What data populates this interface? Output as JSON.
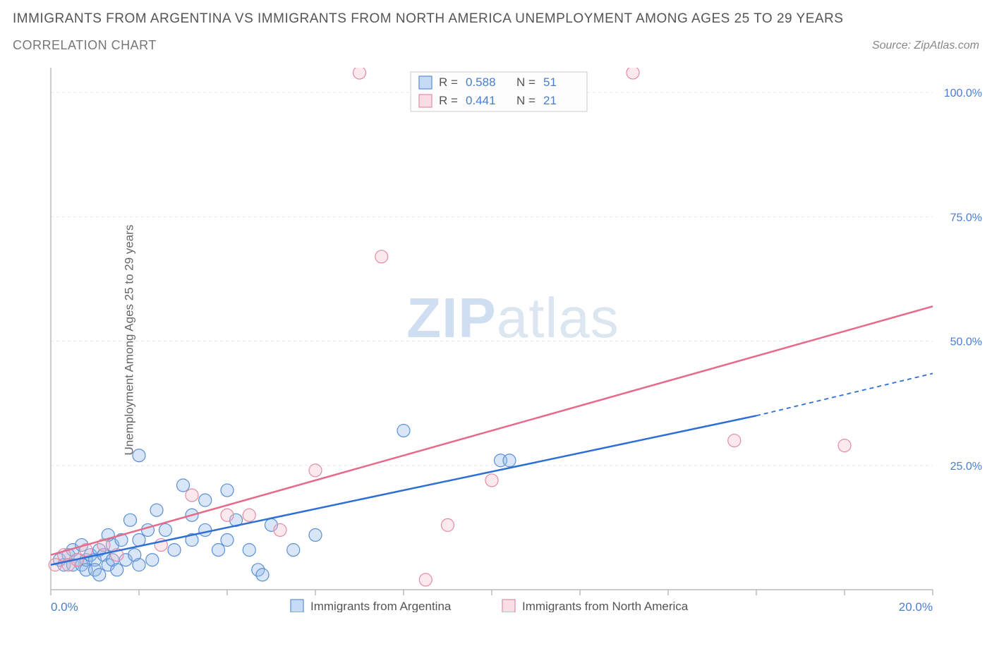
{
  "title": "IMMIGRANTS FROM ARGENTINA VS IMMIGRANTS FROM NORTH AMERICA UNEMPLOYMENT AMONG AGES 25 TO 29 YEARS",
  "subtitle": "CORRELATION CHART",
  "source": "Source: ZipAtlas.com",
  "y_axis_label": "Unemployment Among Ages 25 to 29 years",
  "watermark_a": "ZIP",
  "watermark_b": "atlas",
  "chart": {
    "type": "scatter",
    "background_color": "#ffffff",
    "grid_color": "#e8e8e8",
    "axis_color": "#bbbbbb",
    "tick_label_color": "#4a7dd0",
    "xlim": [
      0,
      20
    ],
    "ylim": [
      0,
      105
    ],
    "x_ticks": [
      0,
      2,
      4,
      6,
      8,
      10,
      12,
      14,
      16,
      18,
      20
    ],
    "x_tick_labels": {
      "0": "0.0%",
      "20": "20.0%"
    },
    "y_ticks": [
      25,
      50,
      75,
      100
    ],
    "y_tick_labels": {
      "25": "25.0%",
      "50": "50.0%",
      "75": "75.0%",
      "100": "100.0%"
    },
    "marker_radius": 9,
    "marker_stroke_width": 1.2,
    "marker_fill_opacity": 0.35,
    "trend_line_width": 2.5
  },
  "series": [
    {
      "key": "argentina",
      "label": "Immigrants from Argentina",
      "fill_color": "#8fb8ec",
      "stroke_color": "#5a8fd6",
      "line_color": "#2e6fd6",
      "R": "0.588",
      "N": "51",
      "trend": {
        "x1": 0,
        "y1": 5,
        "x2": 16,
        "y2": 35,
        "dash_from_x": 16,
        "x2d": 20,
        "y2d": 43.5
      },
      "points": [
        [
          0.2,
          6
        ],
        [
          0.3,
          5
        ],
        [
          0.4,
          7
        ],
        [
          0.5,
          5
        ],
        [
          0.5,
          8
        ],
        [
          0.6,
          6
        ],
        [
          0.7,
          5
        ],
        [
          0.7,
          9
        ],
        [
          0.8,
          6
        ],
        [
          0.8,
          4
        ],
        [
          0.9,
          7
        ],
        [
          1.0,
          6
        ],
        [
          1.0,
          4
        ],
        [
          1.1,
          8
        ],
        [
          1.1,
          3
        ],
        [
          1.2,
          7
        ],
        [
          1.3,
          5
        ],
        [
          1.3,
          11
        ],
        [
          1.4,
          6
        ],
        [
          1.4,
          9
        ],
        [
          1.5,
          4
        ],
        [
          1.6,
          10
        ],
        [
          1.7,
          6
        ],
        [
          1.8,
          14
        ],
        [
          1.9,
          7
        ],
        [
          2.0,
          27
        ],
        [
          2.0,
          10
        ],
        [
          2.0,
          5
        ],
        [
          2.2,
          12
        ],
        [
          2.3,
          6
        ],
        [
          2.4,
          16
        ],
        [
          2.6,
          12
        ],
        [
          2.8,
          8
        ],
        [
          3.0,
          21
        ],
        [
          3.2,
          10
        ],
        [
          3.2,
          15
        ],
        [
          3.5,
          12
        ],
        [
          3.5,
          18
        ],
        [
          3.8,
          8
        ],
        [
          4.0,
          10
        ],
        [
          4.0,
          20
        ],
        [
          4.2,
          14
        ],
        [
          4.5,
          8
        ],
        [
          4.7,
          4
        ],
        [
          4.8,
          3
        ],
        [
          5.0,
          13
        ],
        [
          5.5,
          8
        ],
        [
          6.0,
          11
        ],
        [
          8.0,
          32
        ],
        [
          10.2,
          26
        ],
        [
          10.4,
          26
        ]
      ]
    },
    {
      "key": "north_america",
      "label": "Immigrants from North America",
      "fill_color": "#f4c0cc",
      "stroke_color": "#e48ba4",
      "line_color": "#e66a8a",
      "R": "0.441",
      "N": "21",
      "trend": {
        "x1": 0,
        "y1": 7,
        "x2": 20,
        "y2": 57
      },
      "points": [
        [
          0.1,
          5
        ],
        [
          0.3,
          7
        ],
        [
          0.4,
          5
        ],
        [
          0.6,
          6
        ],
        [
          0.8,
          8
        ],
        [
          1.2,
          9
        ],
        [
          1.5,
          7
        ],
        [
          2.5,
          9
        ],
        [
          3.2,
          19
        ],
        [
          4.0,
          15
        ],
        [
          4.5,
          15
        ],
        [
          5.2,
          12
        ],
        [
          6.0,
          24
        ],
        [
          7.0,
          104
        ],
        [
          7.5,
          67
        ],
        [
          8.5,
          2
        ],
        [
          9.0,
          13
        ],
        [
          10.0,
          22
        ],
        [
          13.2,
          104
        ],
        [
          15.5,
          30
        ],
        [
          18.0,
          29
        ]
      ]
    }
  ],
  "legend_labels": {
    "R": "R =",
    "N": "N ="
  }
}
